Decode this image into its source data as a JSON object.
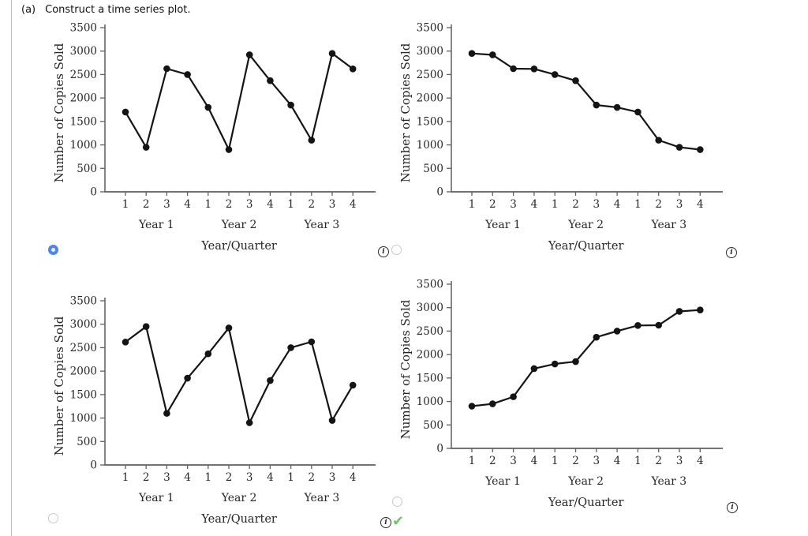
{
  "question": {
    "part_label": "(a)",
    "prompt": "Construct a time series plot."
  },
  "options": [
    {
      "id": "top-left",
      "selected": true
    },
    {
      "id": "top-right",
      "selected": false
    },
    {
      "id": "bottom-left",
      "selected": false
    },
    {
      "id": "bottom-right",
      "selected": false
    }
  ],
  "feedback": {
    "info_icon": "i",
    "check_icon": "✔"
  },
  "colors": {
    "selected_radio_blue": "#4c86ee",
    "unselected_radio_gray": "#c9c9c9",
    "check_green": "#74c36c",
    "axis_gray": "#5f5f5f",
    "text_dark": "#262626",
    "series_black": "#141414"
  },
  "chart_data": [
    {
      "type": "line",
      "position": "top-left",
      "ylabel": "Number of Copies Sold",
      "xlabel": "Year/Quarter",
      "quarter_labels": [
        "1",
        "2",
        "3",
        "4",
        "1",
        "2",
        "3",
        "4",
        "1",
        "2",
        "3",
        "4"
      ],
      "year_labels": [
        "Year 1",
        "Year 2",
        "Year 3"
      ],
      "values": [
        1700,
        950,
        2625,
        2500,
        1800,
        900,
        2920,
        2370,
        1850,
        1100,
        2950,
        2620
      ],
      "ylim": [
        0,
        3500
      ],
      "yticks": [
        0,
        500,
        1000,
        1500,
        2000,
        2500,
        3000,
        3500
      ],
      "grid": false,
      "legend": false
    },
    {
      "type": "line",
      "position": "top-right",
      "ylabel": "Number of Copies Sold",
      "xlabel": "Year/Quarter",
      "quarter_labels": [
        "1",
        "2",
        "3",
        "4",
        "1",
        "2",
        "3",
        "4",
        "1",
        "2",
        "3",
        "4"
      ],
      "year_labels": [
        "Year 1",
        "Year 2",
        "Year 3"
      ],
      "values": [
        2950,
        2920,
        2625,
        2620,
        2500,
        2370,
        1850,
        1800,
        1700,
        1100,
        950,
        900
      ],
      "ylim": [
        0,
        3500
      ],
      "yticks": [
        0,
        500,
        1000,
        1500,
        2000,
        2500,
        3000,
        3500
      ],
      "grid": false,
      "legend": false
    },
    {
      "type": "line",
      "position": "bottom-left",
      "ylabel": "Number of Copies Sold",
      "xlabel": "Year/Quarter",
      "quarter_labels": [
        "1",
        "2",
        "3",
        "4",
        "1",
        "2",
        "3",
        "4",
        "1",
        "2",
        "3",
        "4"
      ],
      "year_labels": [
        "Year 1",
        "Year 2",
        "Year 3"
      ],
      "values": [
        2620,
        2950,
        1100,
        1850,
        2370,
        2920,
        900,
        1800,
        2500,
        2625,
        950,
        1700
      ],
      "ylim": [
        0,
        3500
      ],
      "yticks": [
        0,
        500,
        1000,
        1500,
        2000,
        2500,
        3000,
        3500
      ],
      "grid": false,
      "legend": false
    },
    {
      "type": "line",
      "position": "bottom-right",
      "ylabel": "Number of Copies Sold",
      "xlabel": "Year/Quarter",
      "quarter_labels": [
        "1",
        "2",
        "3",
        "4",
        "1",
        "2",
        "3",
        "4",
        "1",
        "2",
        "3",
        "4"
      ],
      "year_labels": [
        "Year 1",
        "Year 2",
        "Year 3"
      ],
      "values": [
        900,
        950,
        1100,
        1700,
        1800,
        1850,
        2370,
        2500,
        2620,
        2625,
        2920,
        2950
      ],
      "ylim": [
        0,
        3500
      ],
      "yticks": [
        0,
        500,
        1000,
        1500,
        2000,
        2500,
        3000,
        3500
      ],
      "grid": false,
      "legend": false
    }
  ]
}
